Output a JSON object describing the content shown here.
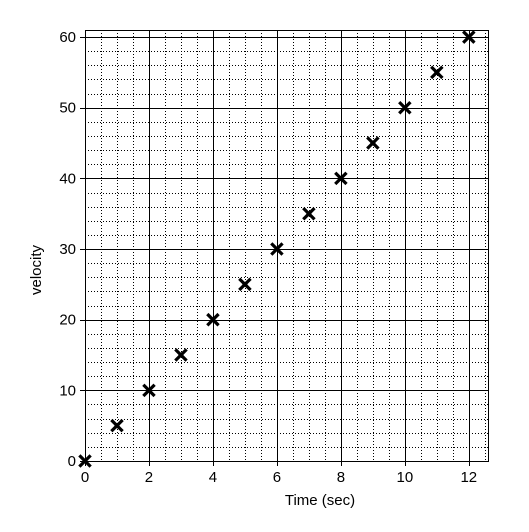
{
  "chart_data": {
    "type": "scatter",
    "title": "",
    "xlabel": "Time (sec)",
    "ylabel": "velocity",
    "xlim": [
      0,
      12.6
    ],
    "ylim": [
      0,
      61
    ],
    "x_ticks": [
      "0",
      "2",
      "4",
      "6",
      "8",
      "10",
      "12"
    ],
    "y_ticks": [
      "0",
      "10",
      "20",
      "30",
      "40",
      "50",
      "60"
    ],
    "x_tick_values": [
      0,
      2,
      4,
      6,
      8,
      10,
      12
    ],
    "y_tick_values": [
      0,
      10,
      20,
      30,
      40,
      50,
      60
    ],
    "grid": {
      "major": true,
      "minor": "dotted"
    },
    "marker": "x",
    "points": [
      {
        "x": 0,
        "y": 0
      },
      {
        "x": 1,
        "y": 5
      },
      {
        "x": 2,
        "y": 10
      },
      {
        "x": 3,
        "y": 15
      },
      {
        "x": 4,
        "y": 20
      },
      {
        "x": 5,
        "y": 25
      },
      {
        "x": 6,
        "y": 30
      },
      {
        "x": 7,
        "y": 35
      },
      {
        "x": 8,
        "y": 40
      },
      {
        "x": 9,
        "y": 45
      },
      {
        "x": 10,
        "y": 50
      },
      {
        "x": 11,
        "y": 55
      },
      {
        "x": 12,
        "y": 60
      }
    ],
    "colors": {
      "marker": "#000000",
      "major_grid": "#000000",
      "minor_grid": "#000000"
    }
  }
}
